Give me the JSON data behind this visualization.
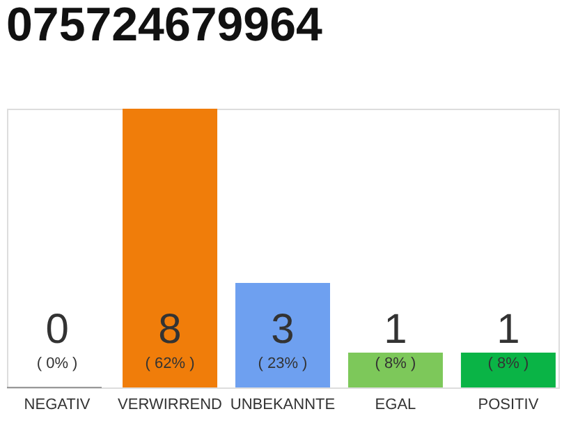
{
  "chart_data": {
    "type": "bar",
    "title": "075724679964",
    "categories": [
      "NEGATIV",
      "VERWIRREND",
      "UNBEKANNTE",
      "EGAL",
      "POSITIV"
    ],
    "values": [
      0,
      8,
      3,
      1,
      1
    ],
    "colors": [
      "#d0d0d0",
      "#f07d0a",
      "#6ea0f0",
      "#7dc85a",
      "#0ab446"
    ],
    "data_labels": true,
    "annotations": [
      "( 0% )",
      "( 62% )",
      "( 23% )",
      "( 8% )",
      "( 8% )"
    ],
    "tick_labels": "x"
  }
}
